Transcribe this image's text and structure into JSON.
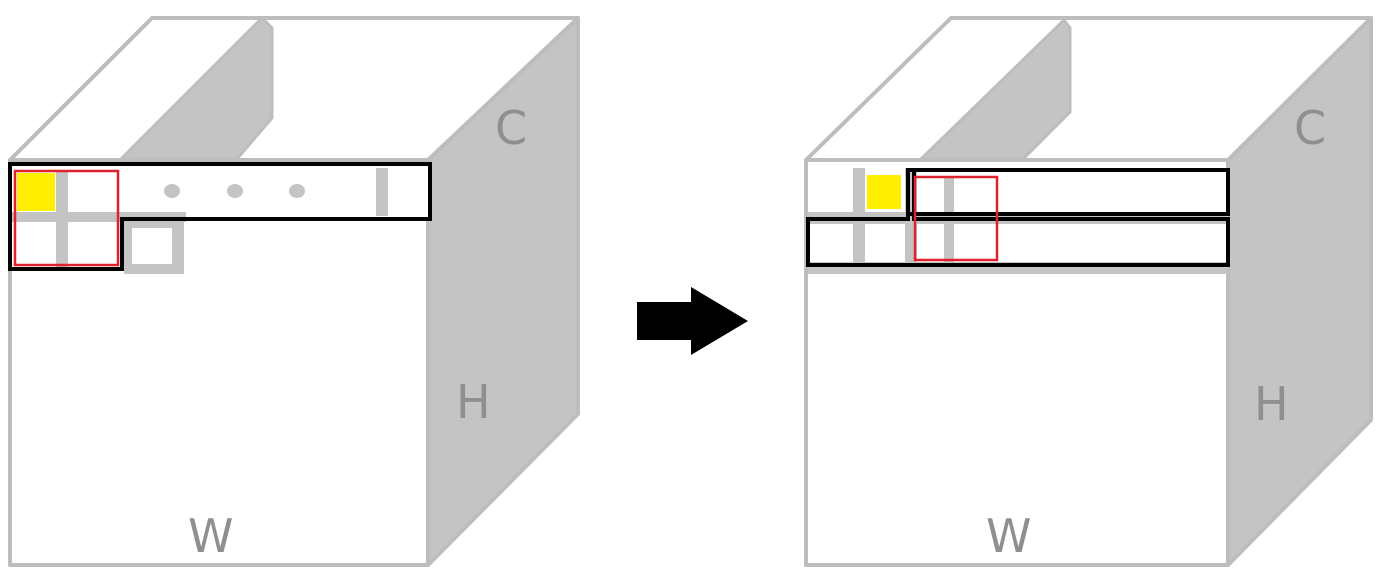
{
  "diagram": {
    "description_labels": {
      "left_cube": {
        "c": "C",
        "h": "H",
        "w": "W"
      },
      "right_cube": {
        "c": "C",
        "h": "H",
        "w": "W"
      }
    },
    "arrow": {
      "direction": "right",
      "color": "#000000"
    },
    "colors": {
      "cube_edge": "#bdbdbd",
      "cube_side": "#c4c4c4",
      "window_border": "#000000",
      "kernel_border": "#e0202a",
      "current_cell": "#ffee00"
    }
  }
}
